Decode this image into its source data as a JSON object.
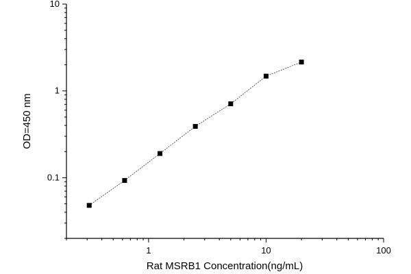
{
  "chart_data": {
    "type": "scatter",
    "title": "",
    "xlabel": "Rat MSRB1 Concentration(ng/mL)",
    "ylabel": "OD=450 nm",
    "xscale": "log",
    "yscale": "log",
    "xlim": [
      0.2,
      100
    ],
    "ylim": [
      0.02,
      10
    ],
    "x_tick_labels": [
      "1",
      "10",
      "100"
    ],
    "y_tick_labels": [
      "0.1",
      "1",
      "10"
    ],
    "grid": false,
    "series": [
      {
        "x": [
          0.3125,
          0.625,
          1.25,
          2.5,
          5,
          10,
          20
        ],
        "y": [
          0.048,
          0.093,
          0.19,
          0.39,
          0.71,
          1.48,
          2.15
        ],
        "line": "dashed",
        "marker": "square",
        "color": "#000000"
      }
    ]
  }
}
